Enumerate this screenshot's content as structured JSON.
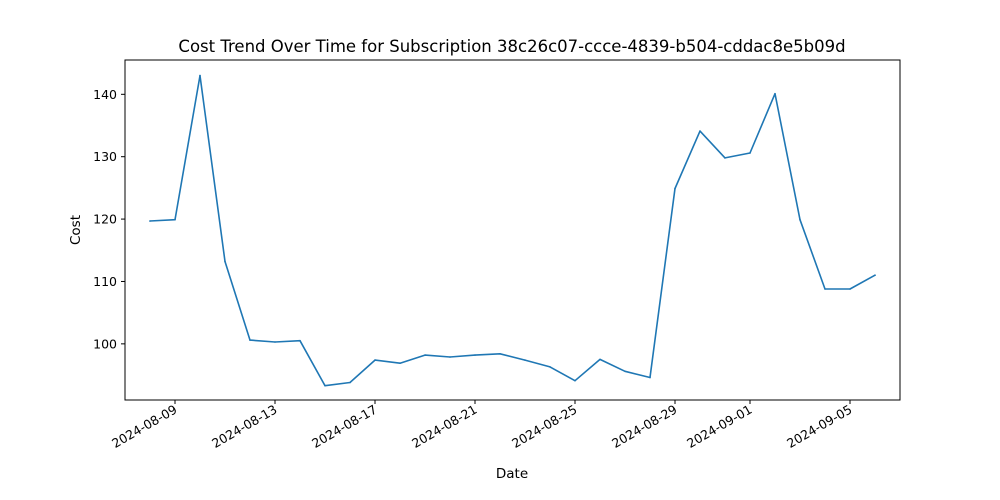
{
  "chart_data": {
    "type": "line",
    "title": "Cost Trend Over Time for Subscription 38c26c07-ccce-4839-b504-cddac8e5b09d",
    "xlabel": "Date",
    "ylabel": "Cost",
    "xlim": [
      "2024-08-07",
      "2024-09-07"
    ],
    "ylim": [
      91,
      145.5
    ],
    "x_ticks": [
      "2024-08-09",
      "2024-08-13",
      "2024-08-17",
      "2024-08-21",
      "2024-08-25",
      "2024-08-29",
      "2024-09-01",
      "2024-09-05"
    ],
    "y_ticks": [
      100,
      110,
      120,
      130,
      140
    ],
    "grid": false,
    "legend": "none",
    "series": [
      {
        "color": "#1f77b4",
        "x": [
          "2024-08-08",
          "2024-08-09",
          "2024-08-10",
          "2024-08-11",
          "2024-08-12",
          "2024-08-13",
          "2024-08-14",
          "2024-08-15",
          "2024-08-16",
          "2024-08-17",
          "2024-08-18",
          "2024-08-19",
          "2024-08-20",
          "2024-08-21",
          "2024-08-22",
          "2024-08-23",
          "2024-08-24",
          "2024-08-25",
          "2024-08-26",
          "2024-08-27",
          "2024-08-28",
          "2024-08-29",
          "2024-08-30",
          "2024-08-31",
          "2024-09-01",
          "2024-09-02",
          "2024-09-03",
          "2024-09-04",
          "2024-09-05",
          "2024-09-06"
        ],
        "values": [
          119.7,
          119.9,
          143.0,
          113.2,
          100.6,
          100.3,
          100.5,
          93.3,
          93.8,
          97.4,
          96.9,
          98.2,
          97.9,
          98.2,
          98.4,
          97.4,
          96.3,
          94.1,
          97.5,
          95.6,
          94.6,
          124.9,
          134.1,
          129.8,
          130.6,
          140.1,
          119.9,
          108.8,
          108.8,
          111.0
        ]
      }
    ]
  }
}
